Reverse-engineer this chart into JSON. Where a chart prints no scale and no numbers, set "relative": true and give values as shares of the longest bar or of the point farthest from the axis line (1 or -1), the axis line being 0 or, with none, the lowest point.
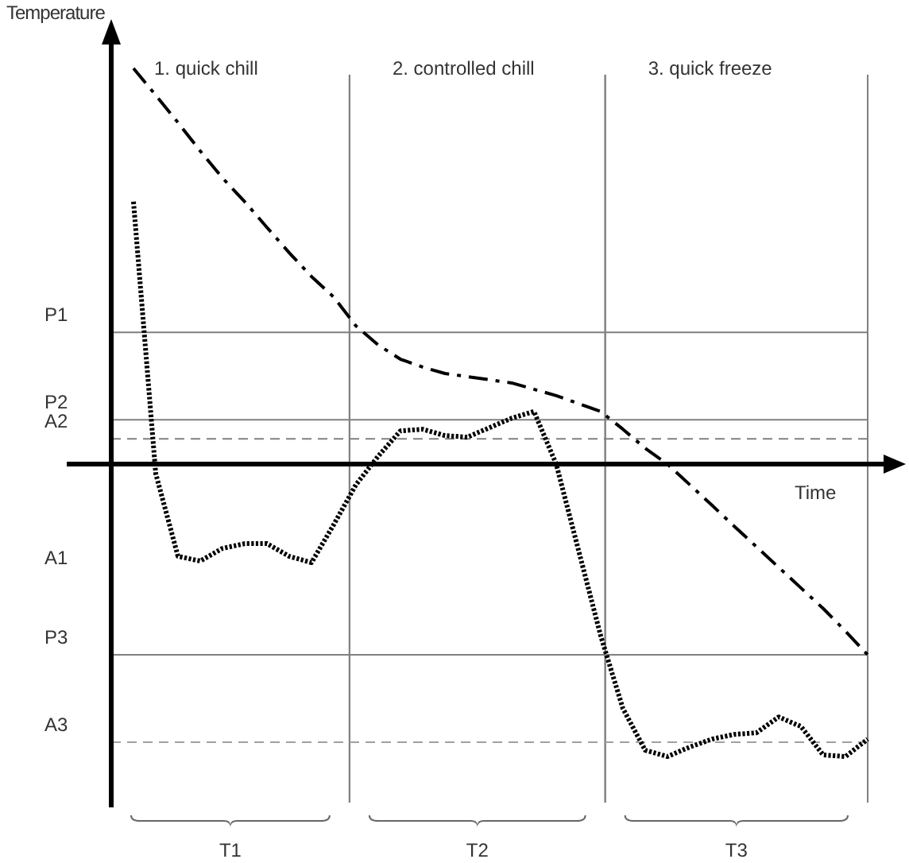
{
  "chart_data": {
    "type": "line",
    "relative": true,
    "xlabel": "Time",
    "ylabel": "Temperature",
    "marker": "none",
    "categories": [
      null,
      null,
      null,
      null,
      null,
      null,
      null,
      null,
      null,
      null,
      null,
      null,
      null,
      null,
      null,
      null,
      null,
      null,
      null,
      null,
      null,
      null,
      null,
      null,
      null,
      null,
      null,
      null,
      null,
      null,
      null,
      null,
      null,
      null,
      null
    ],
    "series": [
      {
        "color": "#000000",
        "line_style": "dashed",
        "values": [
          null,
          1.0,
          0.932,
          0.863,
          0.791,
          0.723,
          0.663,
          0.598,
          0.534,
          0.474,
          0.422,
          0.349,
          0.301,
          0.265,
          0.245,
          0.229,
          0.221,
          0.213,
          0.205,
          0.189,
          0.173,
          0.153,
          0.133,
          0.088,
          0.04,
          0,
          -0.052,
          -0.104,
          -0.157,
          -0.209,
          -0.261,
          -0.313,
          -0.365,
          -0.422,
          -0.482
        ]
      },
      {
        "color": "#000000",
        "line_style": "dotted",
        "values": [
          null,
          0.663,
          -0.024,
          -0.233,
          -0.245,
          -0.213,
          -0.201,
          -0.201,
          -0.233,
          -0.249,
          -0.153,
          -0.052,
          0.02,
          0.084,
          0.088,
          0.072,
          0.068,
          0.092,
          0.116,
          0.133,
          0,
          -0.217,
          -0.434,
          -0.618,
          -0.723,
          -0.739,
          -0.715,
          -0.695,
          -0.683,
          -0.679,
          -0.639,
          -0.663,
          -0.735,
          -0.739,
          -0.695
        ]
      }
    ],
    "ref_lines": [
      {
        "axis": "y",
        "value": 0.333,
        "label": "P1",
        "color": "#808080",
        "line_style": "solid"
      },
      {
        "axis": "y",
        "value": 0.112,
        "label": "P2",
        "color": "#808080",
        "line_style": "solid"
      },
      {
        "axis": "y",
        "value": 0.064,
        "label": "A2",
        "color": "#808080",
        "line_style": "dashed"
      },
      {
        "axis": "y",
        "value": -0.482,
        "label": "P3",
        "color": "#808080",
        "line_style": "solid"
      },
      {
        "axis": "y",
        "value": -0.703,
        "label": "A3",
        "color": "#a0a0a0",
        "line_style": "dashed"
      }
    ],
    "annotations": [
      "1. quick chill",
      "2. controlled chill",
      "3. quick freeze",
      "A1",
      "T1",
      "T2",
      "T3"
    ]
  }
}
